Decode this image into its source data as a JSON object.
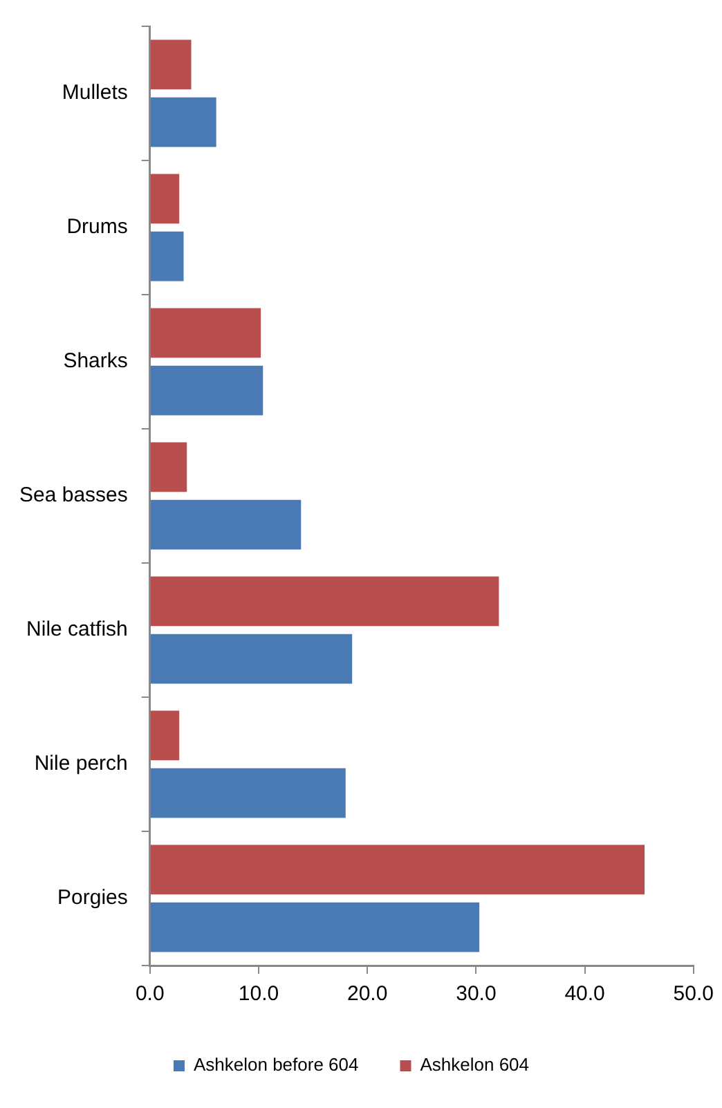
{
  "chart_data": {
    "type": "bar",
    "orientation": "horizontal",
    "categories": [
      "Mullets",
      "Drums",
      "Sharks",
      "Sea basses",
      "Nile catfish",
      "Nile perch",
      "Porgies"
    ],
    "series": [
      {
        "name": "Ashkelon before 604",
        "color": "#4a7ab4",
        "values": [
          6.1,
          3.1,
          10.4,
          13.9,
          18.6,
          18.0,
          30.3
        ]
      },
      {
        "name": "Ashkelon 604",
        "color": "#b84f4e",
        "values": [
          3.8,
          2.7,
          10.2,
          3.4,
          32.1,
          2.7,
          45.5
        ]
      }
    ],
    "xlim": [
      0,
      50
    ],
    "xticks": [
      {
        "value": 0,
        "label": "0.0"
      },
      {
        "value": 10,
        "label": "10.0"
      },
      {
        "value": 20,
        "label": "20.0"
      },
      {
        "value": 30,
        "label": "30.0"
      },
      {
        "value": 40,
        "label": "40.0"
      },
      {
        "value": 50,
        "label": "50.0"
      }
    ],
    "grid": false,
    "legend": "bottom"
  }
}
